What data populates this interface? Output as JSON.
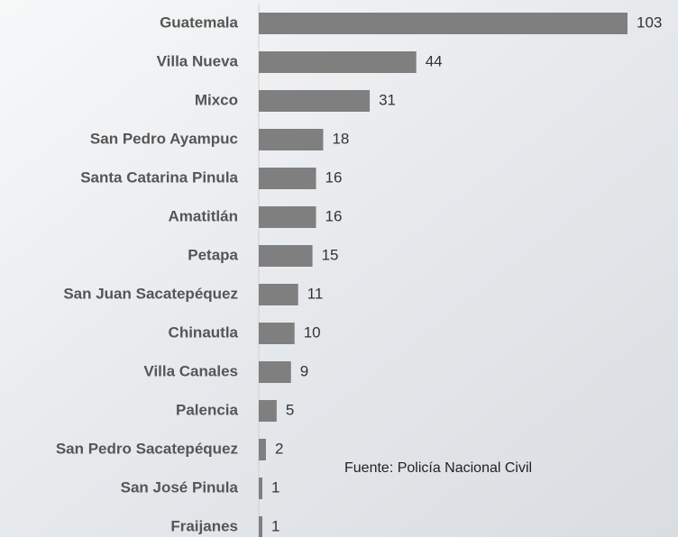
{
  "chart_data": {
    "type": "bar",
    "orientation": "horizontal",
    "categories": [
      "Guatemala",
      "Villa Nueva",
      "Mixco",
      "San Pedro Ayampuc",
      "Santa Catarina Pinula",
      "Amatitlán",
      "Petapa",
      "San Juan Sacatepéquez",
      "Chinautla",
      "Villa Canales",
      "Palencia",
      "San Pedro Sacatepéquez",
      "San José Pinula",
      "Fraijanes"
    ],
    "values": [
      103,
      44,
      31,
      18,
      16,
      16,
      15,
      11,
      10,
      9,
      5,
      2,
      1,
      1
    ],
    "color": "#7f7f7f",
    "annotation": "Fuente: Policía Nacional Civil"
  }
}
